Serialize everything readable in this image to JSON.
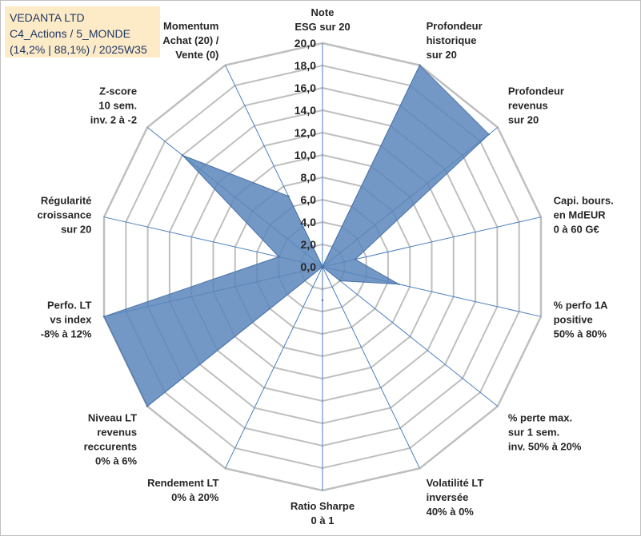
{
  "header": {
    "line1": "VEDANTA LTD",
    "line2": "C4_Actions / 5_MONDE",
    "line3": "(14,2% | 88,1%) / 2025W35"
  },
  "chart_data": {
    "type": "radar",
    "title": "",
    "rmin": 0,
    "rmax": 20,
    "tick_step": 2,
    "ticks": [
      "0,0",
      "2,0",
      "4,0",
      "6,0",
      "8,0",
      "10,0",
      "12,0",
      "14,0",
      "16,0",
      "18,0",
      "20,0"
    ],
    "grid": true,
    "colors": {
      "fill": "#5b86bb",
      "stroke": "#4a72a8",
      "grid": "#bfbfbf",
      "axis": "#4a7fc1"
    },
    "axes": [
      {
        "label": [
          "Note",
          "ESG sur 20"
        ],
        "value": 0
      },
      {
        "label": [
          "Profondeur",
          "historique",
          "sur 20"
        ],
        "value": 20
      },
      {
        "label": [
          "Profondeur",
          "revenus",
          "sur 20"
        ],
        "value": 19
      },
      {
        "label": [
          "Capi. bours.",
          "en MdEUR",
          "0 à 60 G€"
        ],
        "value": 3
      },
      {
        "label": [
          "% perfo 1A",
          "positive",
          "50% à 80%"
        ],
        "value": 7
      },
      {
        "label": [
          "% perte max.",
          "sur 1 sem.",
          "inv. 50% à 20%"
        ],
        "value": 2
      },
      {
        "label": [
          "Volatilité LT",
          "inversée",
          "40% à 0%"
        ],
        "value": 0
      },
      {
        "label": [
          "Ratio Sharpe",
          "0 à 1"
        ],
        "value": 3
      },
      {
        "label": [
          "Rendement LT",
          "0% à 20%"
        ],
        "value": 0
      },
      {
        "label": [
          "Niveau LT",
          "revenus",
          "reccurents",
          "0% à 6%"
        ],
        "value": 20
      },
      {
        "label": [
          "Perfo. LT",
          "vs index",
          "-8% à 12%"
        ],
        "value": 20
      },
      {
        "label": [
          "Régularité",
          "croissance",
          "sur 20"
        ],
        "value": 4
      },
      {
        "label": [
          "Z-score",
          "10 sem.",
          "inv. 2 à -2"
        ],
        "value": 16
      },
      {
        "label": [
          "Momentum",
          "Achat (20) /",
          "Vente (0)"
        ],
        "value": 7
      }
    ]
  }
}
